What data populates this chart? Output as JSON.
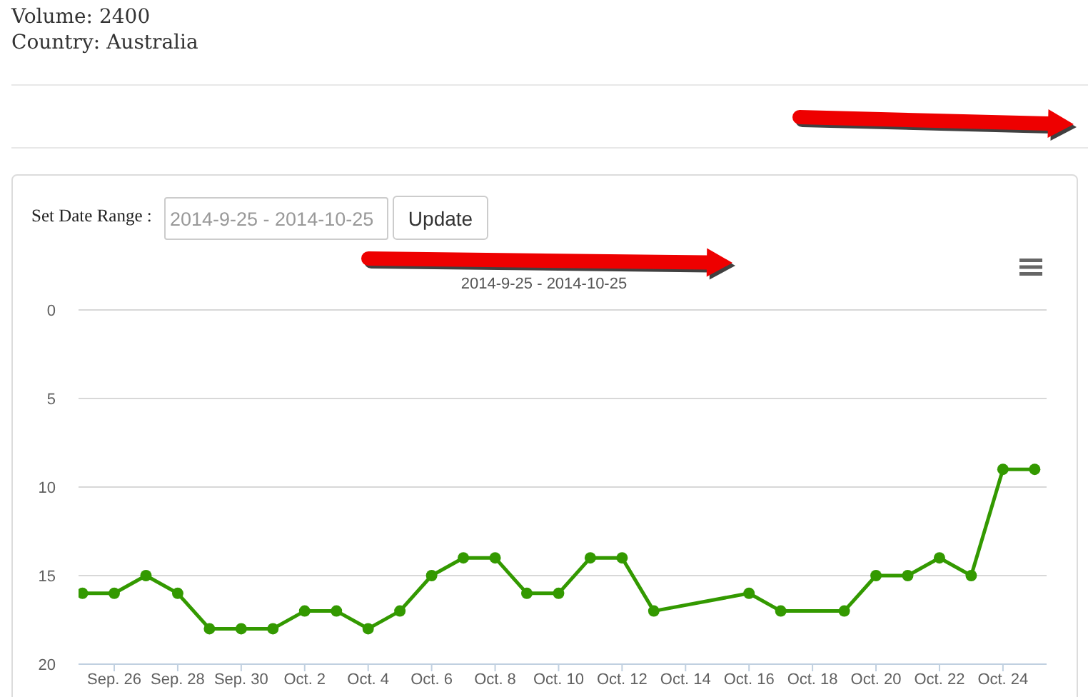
{
  "chart_data": {
    "type": "line",
    "subtitle": "2014-9-25 - 2014-10-25",
    "annotations": [
      "Volume: 2400",
      "Country: Australia",
      "Set Date Range :",
      "2014-9-25 - 2014-10-25",
      "Update"
    ],
    "x": [
      "2014-09-25",
      "2014-09-26",
      "2014-09-27",
      "2014-09-28",
      "2014-09-29",
      "2014-09-30",
      "2014-10-01",
      "2014-10-02",
      "2014-10-03",
      "2014-10-04",
      "2014-10-05",
      "2014-10-06",
      "2014-10-07",
      "2014-10-08",
      "2014-10-09",
      "2014-10-10",
      "2014-10-11",
      "2014-10-12",
      "2014-10-13",
      "2014-10-16",
      "2014-10-17",
      "2014-10-19",
      "2014-10-20",
      "2014-10-21",
      "2014-10-22",
      "2014-10-23",
      "2014-10-24",
      "2014-10-25"
    ],
    "values": [
      16,
      16,
      15,
      16,
      18,
      18,
      18,
      17,
      17,
      18,
      17,
      15,
      14,
      14,
      16,
      16,
      14,
      14,
      17,
      16,
      17,
      17,
      15,
      15,
      14,
      15,
      9,
      9
    ],
    "color": "#339900",
    "marker": "circle",
    "xlim": [
      "2014-09-24T21:00",
      "2014-10-25T09:00"
    ],
    "xticks": [
      {
        "value": "2014-09-26",
        "label": "Sep. 26"
      },
      {
        "value": "2014-09-28",
        "label": "Sep. 28"
      },
      {
        "value": "2014-09-30",
        "label": "Sep. 30"
      },
      {
        "value": "2014-10-02",
        "label": "Oct. 2"
      },
      {
        "value": "2014-10-04",
        "label": "Oct. 4"
      },
      {
        "value": "2014-10-06",
        "label": "Oct. 6"
      },
      {
        "value": "2014-10-08",
        "label": "Oct. 8"
      },
      {
        "value": "2014-10-10",
        "label": "Oct. 10"
      },
      {
        "value": "2014-10-12",
        "label": "Oct. 12"
      },
      {
        "value": "2014-10-14",
        "label": "Oct. 14"
      },
      {
        "value": "2014-10-16",
        "label": "Oct. 16"
      },
      {
        "value": "2014-10-18",
        "label": "Oct. 18"
      },
      {
        "value": "2014-10-20",
        "label": "Oct. 20"
      },
      {
        "value": "2014-10-22",
        "label": "Oct. 22"
      },
      {
        "value": "2014-10-24",
        "label": "Oct. 24"
      }
    ],
    "ylim": [
      20,
      0
    ],
    "yticks": [
      0,
      5,
      10,
      15,
      20
    ],
    "grid": "y"
  }
}
